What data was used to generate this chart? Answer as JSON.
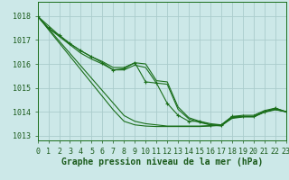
{
  "background_color": "#cce8e8",
  "grid_color": "#aacccc",
  "line_color": "#1a6e1a",
  "tick_color": "#1a5a1a",
  "xlabel": "Graphe pression niveau de la mer (hPa)",
  "xlim": [
    0,
    23
  ],
  "ylim": [
    1012.8,
    1018.6
  ],
  "yticks": [
    1013,
    1014,
    1015,
    1016,
    1017,
    1018
  ],
  "xticks": [
    0,
    1,
    2,
    3,
    4,
    5,
    6,
    7,
    8,
    9,
    10,
    11,
    12,
    13,
    14,
    15,
    16,
    17,
    18,
    19,
    20,
    21,
    22,
    23
  ],
  "series_plain": [
    [
      1018.0,
      1017.6,
      1017.2,
      1016.85,
      1016.55,
      1016.3,
      1016.1,
      1015.85,
      1015.85,
      1016.05,
      1016.0,
      1015.3,
      1015.25,
      1014.2,
      1013.75,
      1013.6,
      1013.5,
      1013.45,
      1013.8,
      1013.85,
      1013.85,
      1014.05,
      1014.15,
      1014.0
    ],
    [
      1018.0,
      1017.5,
      1017.15,
      1016.8,
      1016.45,
      1016.2,
      1016.0,
      1015.75,
      1015.75,
      1015.95,
      1015.85,
      1015.2,
      1015.15,
      1014.1,
      1013.7,
      1013.55,
      1013.45,
      1013.4,
      1013.75,
      1013.8,
      1013.8,
      1014.0,
      1014.1,
      1014.0
    ]
  ],
  "series_marker": [
    [
      1018.0,
      1017.5,
      1017.2,
      1016.85,
      1016.55,
      1016.3,
      1016.05,
      1015.75,
      1015.8,
      1016.05,
      1015.25,
      1015.2,
      1014.35,
      1013.85,
      1013.6,
      1013.6,
      1013.45,
      1013.45,
      1013.8,
      1013.8,
      1013.8,
      1014.0,
      1014.15,
      1014.0
    ]
  ],
  "series_straight": [
    [
      1018.0,
      1017.48,
      1016.96,
      1016.44,
      1015.92,
      1015.4,
      1014.88,
      1014.36,
      1013.84,
      1013.6,
      1013.5,
      1013.45,
      1013.4,
      1013.4,
      1013.4,
      1013.4,
      1013.42,
      1013.45,
      1013.75,
      1013.8,
      1013.8,
      1014.0,
      1014.1,
      1014.0
    ],
    [
      1018.0,
      1017.44,
      1016.88,
      1016.32,
      1015.76,
      1015.2,
      1014.64,
      1014.08,
      1013.6,
      1013.45,
      1013.4,
      1013.38,
      1013.38,
      1013.38,
      1013.38,
      1013.38,
      1013.4,
      1013.43,
      1013.72,
      1013.78,
      1013.78,
      1013.98,
      1014.08,
      1014.0
    ]
  ],
  "label_fontsize": 7,
  "tick_fontsize": 6
}
